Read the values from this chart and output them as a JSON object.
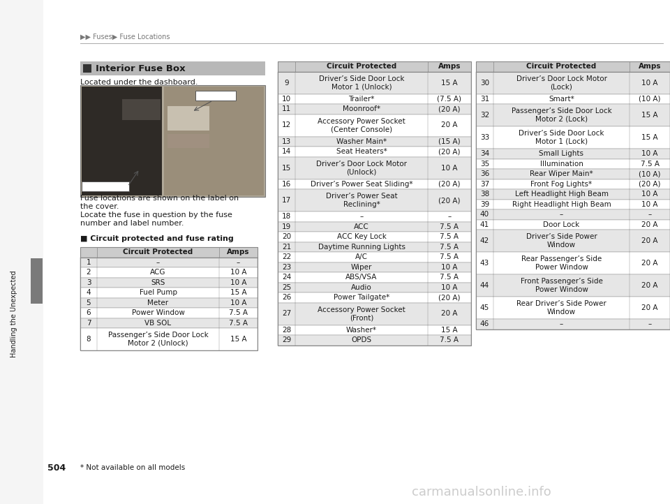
{
  "page_number": "504",
  "breadcrumb": "▶▶ Fuses▶ Fuse Locations",
  "side_label": "Handling the Unexpected",
  "section_title": "Interior Fuse Box",
  "body_text_0": "Located under the dashboard.",
  "body_text_1": "Fuse locations are shown on the label on\nthe cover.",
  "body_text_2": "Locate the fuse in question by the fuse\nnumber and label number.",
  "subsection_title": "■ Circuit protected and fuse rating",
  "footnote": "* Not available on all models",
  "table1_header": [
    "Circuit Protected",
    "Amps"
  ],
  "table1_rows": [
    [
      "1",
      "–",
      "–"
    ],
    [
      "2",
      "ACG",
      "10 A"
    ],
    [
      "3",
      "SRS",
      "10 A"
    ],
    [
      "4",
      "Fuel Pump",
      "15 A"
    ],
    [
      "5",
      "Meter",
      "10 A"
    ],
    [
      "6",
      "Power Window",
      "7.5 A"
    ],
    [
      "7",
      "VB SOL",
      "7.5 A"
    ],
    [
      "8",
      "Passenger’s Side Door Lock\nMotor 2 (Unlock)",
      "15 A"
    ]
  ],
  "table2_header": [
    "Circuit Protected",
    "Amps"
  ],
  "table2_rows": [
    [
      "9",
      "Driver’s Side Door Lock\nMotor 1 (Unlock)",
      "15 A"
    ],
    [
      "10",
      "Trailer*",
      "(7.5 A)"
    ],
    [
      "11",
      "Moonroof*",
      "(20 A)"
    ],
    [
      "12",
      "Accessory Power Socket\n(Center Console)",
      "20 A"
    ],
    [
      "13",
      "Washer Main*",
      "(15 A)"
    ],
    [
      "14",
      "Seat Heaters*",
      "(20 A)"
    ],
    [
      "15",
      "Driver’s Door Lock Motor\n(Unlock)",
      "10 A"
    ],
    [
      "16",
      "Driver’s Power Seat Sliding*",
      "(20 A)"
    ],
    [
      "17",
      "Driver’s Power Seat\nReclining*",
      "(20 A)"
    ],
    [
      "18",
      "–",
      "–"
    ],
    [
      "19",
      "ACC",
      "7.5 A"
    ],
    [
      "20",
      "ACC Key Lock",
      "7.5 A"
    ],
    [
      "21",
      "Daytime Running Lights",
      "7.5 A"
    ],
    [
      "22",
      "A/C",
      "7.5 A"
    ],
    [
      "23",
      "Wiper",
      "10 A"
    ],
    [
      "24",
      "ABS/VSA",
      "7.5 A"
    ],
    [
      "25",
      "Audio",
      "10 A"
    ],
    [
      "26",
      "Power Tailgate*",
      "(20 A)"
    ],
    [
      "27",
      "Accessory Power Socket\n(Front)",
      "20 A"
    ],
    [
      "28",
      "Washer*",
      "15 A"
    ],
    [
      "29",
      "OPDS",
      "7.5 A"
    ]
  ],
  "table3_header": [
    "Circuit Protected",
    "Amps"
  ],
  "table3_rows": [
    [
      "30",
      "Driver’s Door Lock Motor\n(Lock)",
      "10 A"
    ],
    [
      "31",
      "Smart*",
      "(10 A)"
    ],
    [
      "32",
      "Passenger’s Side Door Lock\nMotor 2 (Lock)",
      "15 A"
    ],
    [
      "33",
      "Driver’s Side Door Lock\nMotor 1 (Lock)",
      "15 A"
    ],
    [
      "34",
      "Small Lights",
      "10 A"
    ],
    [
      "35",
      "Illumination",
      "7.5 A"
    ],
    [
      "36",
      "Rear Wiper Main*",
      "(10 A)"
    ],
    [
      "37",
      "Front Fog Lights*",
      "(20 A)"
    ],
    [
      "38",
      "Left Headlight High Beam",
      "10 A"
    ],
    [
      "39",
      "Right Headlight High Beam",
      "10 A"
    ],
    [
      "40",
      "–",
      "–"
    ],
    [
      "41",
      "Door Lock",
      "20 A"
    ],
    [
      "42",
      "Driver’s Side Power\nWindow",
      "20 A"
    ],
    [
      "43",
      "Rear Passenger’s Side\nPower Window",
      "20 A"
    ],
    [
      "44",
      "Front Passenger’s Side\nPower Window",
      "20 A"
    ],
    [
      "45",
      "Rear Driver’s Side Power\nWindow",
      "20 A"
    ],
    [
      "46",
      "–",
      "–"
    ]
  ],
  "bg_color": "#ffffff",
  "header_bg": "#cccccc",
  "alt_row_bg": "#e6e6e6",
  "white_row_bg": "#ffffff",
  "section_header_bg": "#b8b8b8",
  "border_color": "#888888",
  "text_color": "#1a1a1a",
  "gray_sidebar_color": "#7a7a7a",
  "breadcrumb_color": "#777777",
  "top_line_color": "#aaaaaa",
  "fuse_box_label_bg": "#ffffff",
  "watermark_color": "#cccccc"
}
